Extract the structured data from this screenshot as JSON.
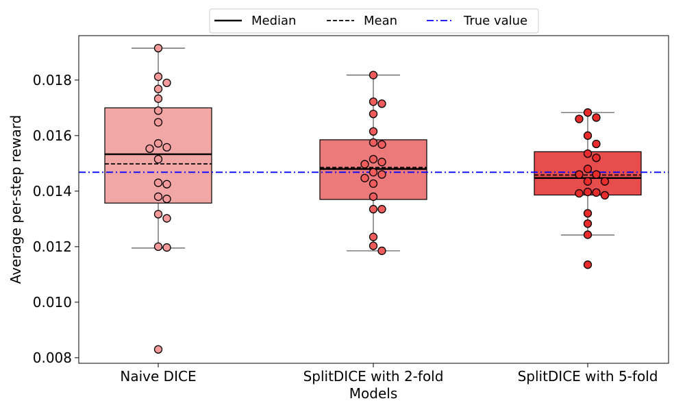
{
  "chart_data": {
    "type": "box",
    "xlabel": "Models",
    "ylabel": "Average per-step reward",
    "ylim": [
      0.0078,
      0.0196
    ],
    "yticks": [
      "0.008",
      "0.010",
      "0.012",
      "0.014",
      "0.016",
      "0.018"
    ],
    "ytick_values": [
      0.008,
      0.01,
      0.012,
      0.014,
      0.016,
      0.018
    ],
    "categories": [
      "Naive DICE",
      "SplitDICE with 2-fold",
      "SplitDICE with 5-fold"
    ],
    "true_value": 0.01468,
    "legend": {
      "placement": "top-center",
      "entries": [
        {
          "label": "Median",
          "style": "solid",
          "color": "#000000"
        },
        {
          "label": "Mean",
          "style": "dashed",
          "color": "#000000"
        },
        {
          "label": "True value",
          "style": "dashdot",
          "color": "#0000ff"
        }
      ]
    },
    "series": [
      {
        "box_color": "#f2a7a7",
        "point_color": "#f49a9a",
        "whisker_low": 0.01195,
        "q1": 0.01357,
        "median": 0.01533,
        "mean": 0.01498,
        "q3": 0.017,
        "whisker_high": 0.01915,
        "points": [
          0.01915,
          0.01812,
          0.0179,
          0.01768,
          0.01733,
          0.0169,
          0.01648,
          0.01572,
          0.01558,
          0.01553,
          0.01515,
          0.0143,
          0.01425,
          0.0138,
          0.01372,
          0.01317,
          0.01302,
          0.012,
          0.01197,
          0.0083
        ]
      },
      {
        "box_color": "#ec7a7a",
        "point_color": "#ee5c5c",
        "whisker_low": 0.01185,
        "q1": 0.0137,
        "median": 0.0148,
        "mean": 0.01485,
        "q3": 0.01585,
        "whisker_high": 0.01818,
        "points": [
          0.01818,
          0.01722,
          0.01715,
          0.01678,
          0.01615,
          0.01575,
          0.01568,
          0.01515,
          0.01505,
          0.01497,
          0.01468,
          0.0146,
          0.01447,
          0.01427,
          0.0138,
          0.01335,
          0.01335,
          0.01235,
          0.01203,
          0.01185
        ]
      },
      {
        "box_color": "#e74d4d",
        "point_color": "#e82c2c",
        "whisker_low": 0.01242,
        "q1": 0.01386,
        "median": 0.01447,
        "mean": 0.01458,
        "q3": 0.01542,
        "whisker_high": 0.01683,
        "points": [
          0.01683,
          0.01665,
          0.0166,
          0.016,
          0.0157,
          0.01535,
          0.0152,
          0.0148,
          0.0146,
          0.0146,
          0.01435,
          0.01435,
          0.01397,
          0.01395,
          0.01392,
          0.01385,
          0.0132,
          0.01283,
          0.01243,
          0.01135
        ]
      }
    ]
  }
}
